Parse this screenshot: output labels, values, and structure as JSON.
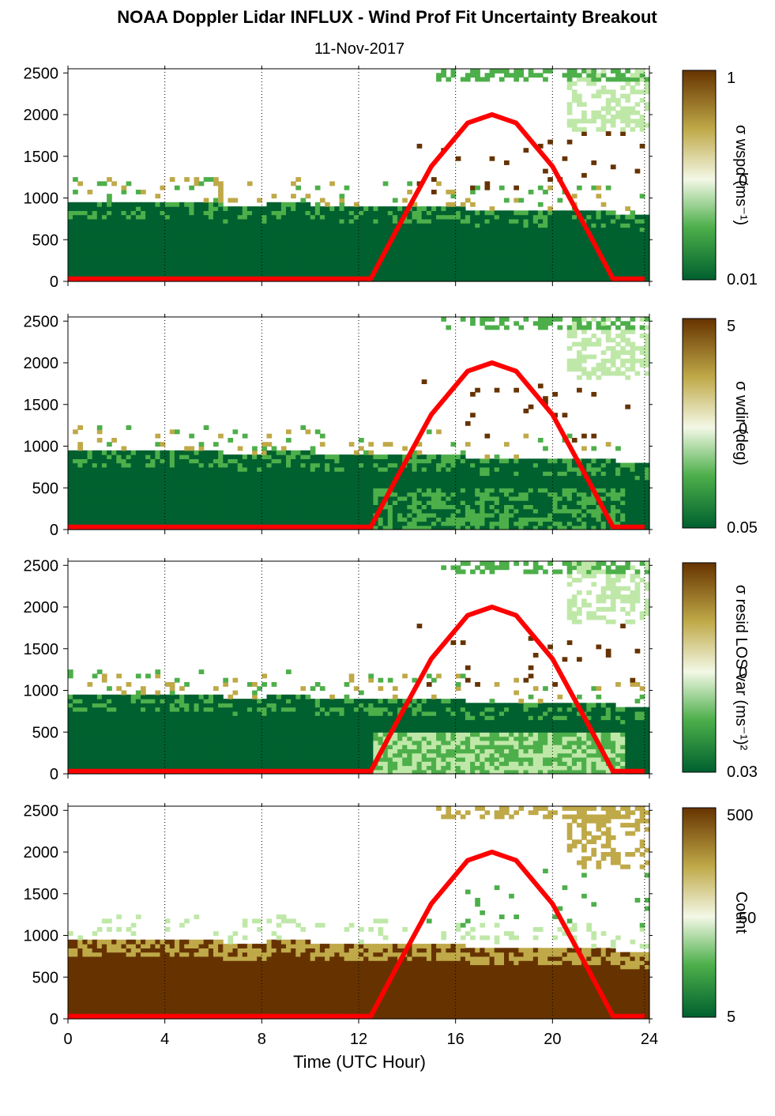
{
  "title": "NOAA Doppler Lidar INFLUX - Wind Prof Fit Uncertainty Breakout",
  "subtitle": "11-Nov-2017",
  "colors": {
    "dark_green": "#00602f",
    "mid_green": "#4daf4a",
    "light_green": "#bfe8a8",
    "pale": "#f3f8e6",
    "khaki": "#bfa948",
    "dark_brown": "#663300",
    "curve": "#ff0000"
  },
  "chart_data": [
    {
      "type": "heatmap",
      "xlabel": "",
      "ylabel": "",
      "xlim": [
        0,
        24
      ],
      "ylim": [
        0,
        2550
      ],
      "x_ticks": [
        "0",
        "4",
        "8",
        "12",
        "16",
        "20",
        "24"
      ],
      "y_ticks": [
        "0",
        "500",
        "1000",
        "1500",
        "2000",
        "2500"
      ],
      "colorbar": {
        "label": "σ wspd (ms⁻¹)",
        "ticks": [
          "1",
          "0",
          "0.01"
        ],
        "scale": "log"
      },
      "curve": {
        "x": [
          0,
          12.5,
          13.5,
          15,
          16.5,
          17.5,
          18.5,
          20,
          21.5,
          22.5,
          23.8
        ],
        "y": [
          30,
          30,
          580,
          1380,
          1900,
          2000,
          1900,
          1380,
          580,
          30,
          30
        ]
      }
    },
    {
      "type": "heatmap",
      "xlabel": "",
      "ylabel": "",
      "xlim": [
        0,
        24
      ],
      "ylim": [
        0,
        2550
      ],
      "x_ticks": [
        "0",
        "4",
        "8",
        "12",
        "16",
        "20",
        "24"
      ],
      "y_ticks": [
        "0",
        "500",
        "1000",
        "1500",
        "2000",
        "2500"
      ],
      "colorbar": {
        "label": "σ wdir (deg)",
        "ticks": [
          "5",
          "0",
          "0.05"
        ],
        "scale": "log"
      },
      "curve": {
        "x": [
          0,
          12.5,
          13.5,
          15,
          16.5,
          17.5,
          18.5,
          20,
          21.5,
          22.5,
          23.8
        ],
        "y": [
          30,
          30,
          580,
          1380,
          1900,
          2000,
          1900,
          1380,
          580,
          30,
          30
        ]
      }
    },
    {
      "type": "heatmap",
      "xlabel": "",
      "ylabel": "",
      "xlim": [
        0,
        24
      ],
      "ylim": [
        0,
        2550
      ],
      "x_ticks": [
        "0",
        "4",
        "8",
        "12",
        "16",
        "20",
        "24"
      ],
      "y_ticks": [
        "0",
        "500",
        "1000",
        "1500",
        "2000",
        "2500"
      ],
      "colorbar": {
        "label": "σ resid LOS var (ms⁻¹)²",
        "ticks": [
          "",
          "0",
          "0.03"
        ],
        "scale": "log"
      },
      "curve": {
        "x": [
          0,
          12.5,
          13.5,
          15,
          16.5,
          17.5,
          18.5,
          20,
          21.5,
          22.5,
          23.8
        ],
        "y": [
          30,
          30,
          580,
          1380,
          1900,
          2000,
          1900,
          1380,
          580,
          30,
          30
        ]
      }
    },
    {
      "type": "heatmap",
      "xlabel": "Time (UTC Hour)",
      "ylabel": "",
      "xlim": [
        0,
        24
      ],
      "ylim": [
        0,
        2550
      ],
      "x_ticks": [
        "0",
        "4",
        "8",
        "12",
        "16",
        "20",
        "24"
      ],
      "y_ticks": [
        "0",
        "500",
        "1000",
        "1500",
        "2000",
        "2500"
      ],
      "colorbar": {
        "label": "Count",
        "ticks": [
          "500",
          "50",
          "5"
        ],
        "scale": "log"
      },
      "curve": {
        "x": [
          0,
          12.5,
          13.5,
          15,
          16.5,
          17.5,
          18.5,
          20,
          21.5,
          22.5,
          23.8
        ],
        "y": [
          30,
          30,
          580,
          1380,
          1900,
          2000,
          1900,
          1380,
          580,
          30,
          30
        ]
      }
    }
  ]
}
